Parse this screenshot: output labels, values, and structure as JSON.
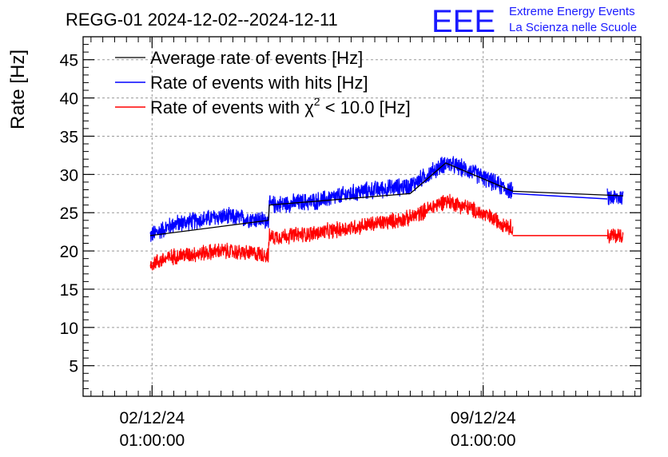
{
  "logo": {
    "mark": "EEE",
    "line1": "Extreme Energy Events",
    "line2": "La Scienza nelle Scuole",
    "color": "#1a1aff"
  },
  "chart_data": {
    "type": "line",
    "title": "REGG-01 2024-12-02--2024-12-11",
    "xlabel": "",
    "ylabel": "Rate [Hz]",
    "ylim": [
      1,
      48
    ],
    "yticks": [
      5,
      10,
      15,
      20,
      25,
      30,
      35,
      40,
      45
    ],
    "xlim": [
      "2024-11-30T14:00",
      "2024-12-12T09:00"
    ],
    "xticks": [
      {
        "x": "2024-12-02T01:00",
        "date": "02/12/24",
        "time": "01:00:00"
      },
      {
        "x": "2024-12-09T01:00",
        "date": "09/12/24",
        "time": "01:00:00"
      }
    ],
    "grid": true,
    "legend_position": "top-left",
    "legend": {
      "chi_prefix": "Rate of events with ",
      "chi_symbol": "χ",
      "chi_sup": "2",
      "chi_suffix": " < 10.0 [Hz]"
    },
    "series": [
      {
        "name": "Average rate of events [Hz]",
        "color": "#000000",
        "style": "line",
        "x": [
          "2024-12-02T00:00",
          "2024-12-04T12:00",
          "2024-12-04T12:30",
          "2024-12-07T12:00",
          "2024-12-08T06:00",
          "2024-12-09T16:00",
          "2024-12-12T00:00"
        ],
        "values": [
          22.0,
          24.0,
          26.0,
          27.5,
          31.5,
          27.8,
          27.2
        ]
      },
      {
        "name": "Rate of events with hits [Hz]",
        "color": "#0000ff",
        "style": "noisy-band",
        "noise": 1.1,
        "x": [
          "2024-12-02T00:00",
          "2024-12-02T12:00",
          "2024-12-03T12:00",
          "2024-12-04T12:00",
          "2024-12-04T12:30",
          "2024-12-05T12:00",
          "2024-12-06T12:00",
          "2024-12-07T12:00",
          "2024-12-08T06:00",
          "2024-12-08T18:00",
          "2024-12-09T12:00",
          "2024-12-09T16:00",
          "2024-12-11T16:00",
          "2024-12-12T00:00"
        ],
        "values": [
          22.0,
          23.5,
          24.5,
          24.0,
          26.0,
          26.5,
          27.8,
          28.5,
          31.5,
          30.5,
          28.2,
          27.8,
          27.0,
          27.0
        ],
        "gap": {
          "from": "2024-12-09T16:00",
          "to": "2024-12-11T16:00",
          "connector": [
            27.5,
            26.8
          ]
        }
      },
      {
        "name": "Rate of events with χ2 < 10.0 [Hz]",
        "color": "#ff0000",
        "style": "noisy-band",
        "noise": 1.0,
        "x": [
          "2024-12-02T00:00",
          "2024-12-02T12:00",
          "2024-12-03T12:00",
          "2024-12-04T12:00",
          "2024-12-04T12:30",
          "2024-12-05T12:00",
          "2024-12-06T12:00",
          "2024-12-07T12:00",
          "2024-12-08T06:00",
          "2024-12-08T18:00",
          "2024-12-09T12:00",
          "2024-12-09T16:00",
          "2024-12-11T16:00",
          "2024-12-12T00:00"
        ],
        "values": [
          18.3,
          19.3,
          20.0,
          19.5,
          21.8,
          22.3,
          23.3,
          24.3,
          26.6,
          25.6,
          23.5,
          23.0,
          22.0,
          22.0
        ],
        "gap": {
          "from": "2024-12-09T16:00",
          "to": "2024-12-11T16:00",
          "connector": [
            22.0,
            22.0
          ]
        }
      }
    ]
  }
}
